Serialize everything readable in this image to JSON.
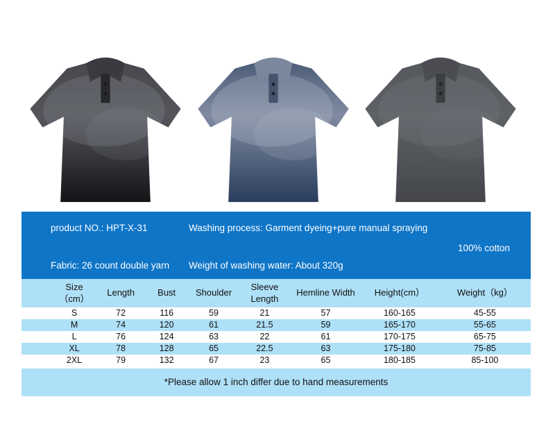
{
  "info_bar": {
    "product_no": "product NO.: HPT-X-31",
    "washing_process": "Washing process: Garment dyeing+pure manual spraying",
    "material": "100% cotton",
    "fabric": "Fabric: 26 count double yarn",
    "washing_water_weight": "Weight of washing water: About 320g",
    "background_color": "#0f75c7"
  },
  "size_chart": {
    "headers": [
      "Size\n（cm）",
      "Length",
      "Bust",
      "Shoulder",
      "Sleeve\nLength",
      "Hemline Width",
      "Height(cm）",
      "Weight（kg）"
    ],
    "rows": [
      [
        "S",
        "72",
        "116",
        "59",
        "21",
        "57",
        "160-165",
        "45-55"
      ],
      [
        "M",
        "74",
        "120",
        "61",
        "21.5",
        "59",
        "165-170",
        "55-65"
      ],
      [
        "L",
        "76",
        "124",
        "63",
        "22",
        "61",
        "170-175",
        "65-75"
      ],
      [
        "XL",
        "78",
        "128",
        "65",
        "22.5",
        "63",
        "175-180",
        "75-85"
      ],
      [
        "2XL",
        "79",
        "132",
        "67",
        "23",
        "65",
        "180-185",
        "85-100"
      ]
    ],
    "stripe_color": "#aee0f7"
  },
  "footer": {
    "note": "*Please allow 1 inch differ due to hand measurements"
  },
  "shirts": [
    {
      "color_name": "black washed polo",
      "gradient_top": "#47484d",
      "gradient_mid": "#55565c",
      "gradient_bottom": "#141417",
      "collar": "#3a3b40",
      "placket": "#27282c",
      "button": "#17181b",
      "wash": "#90919a"
    },
    {
      "color_name": "navy blue washed polo",
      "gradient_top": "#4d5d78",
      "gradient_mid": "#808ba1",
      "gradient_bottom": "#2a3d5c",
      "collar": "#7b879c",
      "placket": "#46536d",
      "button": "#1d2330",
      "wash": "#b3bccb"
    },
    {
      "color_name": "grey washed polo",
      "gradient_top": "#55585d",
      "gradient_mid": "#5e6166",
      "gradient_bottom": "#44464b",
      "collar": "#4b4d52",
      "placket": "#3c3e42",
      "button": "#232428",
      "wash": "#868991"
    }
  ]
}
